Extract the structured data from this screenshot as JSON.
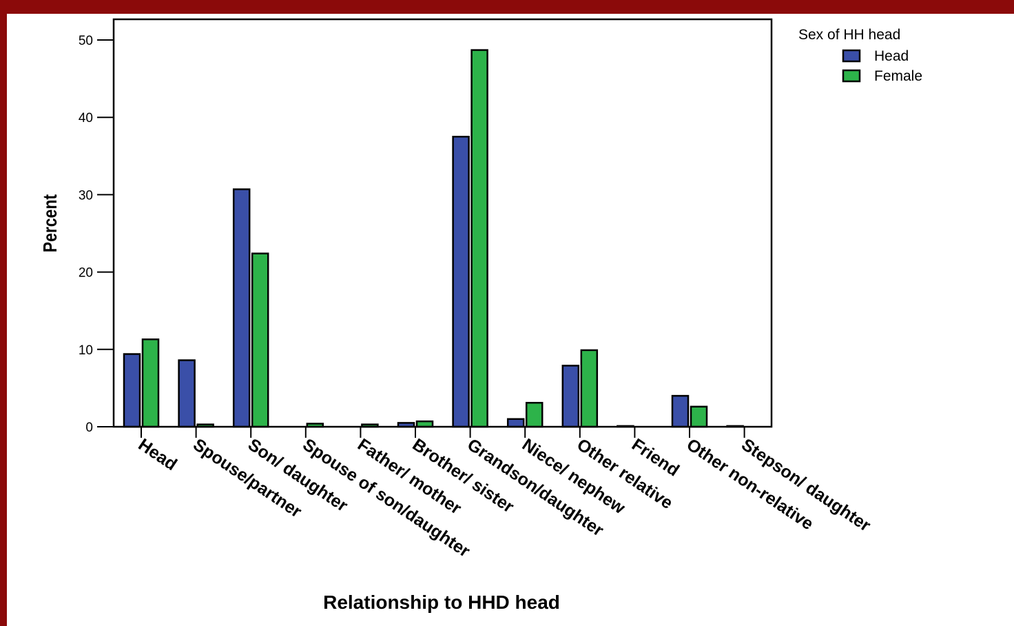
{
  "chart_data": {
    "type": "bar",
    "xlabel": "Relationship to HHD head",
    "ylabel": "Percent",
    "ylim": [
      0,
      52
    ],
    "yticks": [
      0,
      10,
      20,
      30,
      40,
      50
    ],
    "grid": false,
    "legend": {
      "title": "Sex of HH head",
      "placement": "top-right"
    },
    "categories": [
      "Head",
      "Spouse/partner",
      "Son/ daughter",
      "Spouse of son/daughter",
      "Father/ mother",
      "Brother/ sister",
      "Grandson/daughter",
      "Niece/ nephew",
      "Other relative",
      "Friend",
      "Other non-relative",
      "Stepson/ daughter"
    ],
    "series": [
      {
        "name": "Head",
        "color": "#3a4fa8",
        "values": [
          9.4,
          8.6,
          30.7,
          0,
          0,
          0.5,
          37.5,
          1.0,
          7.9,
          0.1,
          4.0,
          0.1
        ]
      },
      {
        "name": "Female",
        "color": "#2db34a",
        "values": [
          11.3,
          0.3,
          22.4,
          0.4,
          0.3,
          0.7,
          48.7,
          3.1,
          9.9,
          0,
          2.6,
          0
        ]
      }
    ]
  }
}
